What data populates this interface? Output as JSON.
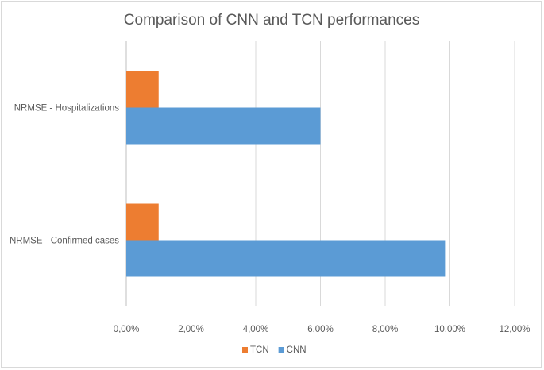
{
  "chart_data": {
    "type": "bar",
    "orientation": "horizontal",
    "title": "Comparison of CNN and TCN performances",
    "categories": [
      "NRMSE - Hospitalizations",
      "NRMSE - Confirmed cases"
    ],
    "series": [
      {
        "name": "TCN",
        "color": "#ed7d31",
        "values": [
          1.0,
          1.0
        ]
      },
      {
        "name": "CNN",
        "color": "#5b9bd5",
        "values": [
          6.0,
          9.85
        ]
      }
    ],
    "xlim": [
      0,
      12
    ],
    "xticks": [
      "0,00%",
      "2,00%",
      "4,00%",
      "6,00%",
      "8,00%",
      "10,00%",
      "12,00%"
    ],
    "value_unit": "%",
    "grid": "vertical",
    "legend_position": "bottom"
  }
}
